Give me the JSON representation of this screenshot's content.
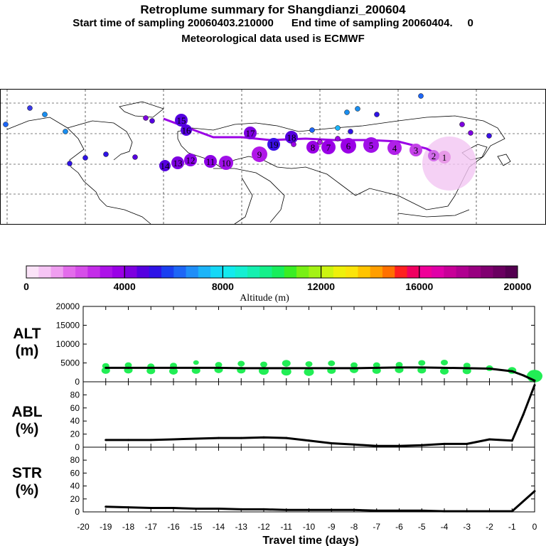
{
  "header": {
    "title": "Retroplume summary for Shangdianzi_200604",
    "sampling_line": "Start time of sampling 20060403.210000      End time of sampling 20060404.     0",
    "met_line": "Meteorological data used is ECMWF"
  },
  "colorbar": {
    "tick_labels": [
      "0",
      "4000",
      "8000",
      "12000",
      "16000",
      "20000"
    ],
    "label": "Altitude (m)",
    "colors": [
      "#fbe3f8",
      "#f6c5f5",
      "#ef9ef0",
      "#e36ceb",
      "#d64ee9",
      "#c42ce8",
      "#ad12e8",
      "#9a00e6",
      "#7d00e0",
      "#5500e0",
      "#2e13e6",
      "#1a3ff0",
      "#1d66f6",
      "#1f8ef8",
      "#1cb4f8",
      "#14d8f6",
      "#12eaee",
      "#14efd2",
      "#14f0b0",
      "#14f08a",
      "#18ee5c",
      "#3aee24",
      "#78f014",
      "#a4f214",
      "#ccf410",
      "#eef00a",
      "#fbe40a",
      "#ffc400",
      "#ff9e00",
      "#ff7000",
      "#ff2020",
      "#f00060",
      "#f00098",
      "#e000a8",
      "#c80098",
      "#b00090",
      "#980080",
      "#800070",
      "#6a0060",
      "#540050"
    ]
  },
  "map": {
    "trajectory_labels": [
      "1",
      "2",
      "3",
      "4",
      "5",
      "6",
      "7",
      "8",
      "9",
      "10",
      "11",
      "12",
      "13",
      "14",
      "15",
      "16",
      "17",
      "18",
      "19"
    ],
    "colors": {
      "track": "#9a00e6",
      "plume_fresh": "#f3c6f3",
      "continent": "#000000"
    }
  },
  "panels": {
    "alt": {
      "label_line1": "ALT",
      "label_line2": "(m)",
      "yticks": [
        "0",
        "5000",
        "10000",
        "15000",
        "20000"
      ]
    },
    "abl": {
      "label_line1": "ABL",
      "label_line2": "(%)",
      "yticks": [
        "0",
        "20",
        "40",
        "60",
        "80"
      ]
    },
    "str": {
      "label_line1": "STR",
      "label_line2": "(%)",
      "yticks": [
        "0",
        "20",
        "40",
        "60",
        "80"
      ]
    },
    "xticks": [
      "-20",
      "-19",
      "-18",
      "-17",
      "-16",
      "-15",
      "-14",
      "-13",
      "-12",
      "-11",
      "-10",
      "-9",
      "-8",
      "-7",
      "-6",
      "-5",
      "-4",
      "-3",
      "-2",
      "-1",
      "0"
    ],
    "xlabel": "Travel time (days)"
  },
  "chart_data": [
    {
      "type": "line",
      "title": "ALT (m)",
      "ylabel": "ALT (m)",
      "xlabel": "Travel time (days)",
      "x": [
        0,
        -0.5,
        -1,
        -2,
        -3,
        -4,
        -5,
        -6,
        -7,
        -8,
        -9,
        -10,
        -11,
        -12,
        -13,
        -14,
        -15,
        -16,
        -17,
        -18,
        -19
      ],
      "values": [
        300,
        1700,
        2800,
        3500,
        3600,
        3700,
        3800,
        3800,
        3700,
        3600,
        3600,
        3600,
        3600,
        3600,
        3600,
        3700,
        3700,
        3700,
        3700,
        3700,
        3700
      ],
      "xlim": [
        -20,
        0
      ],
      "ylim": [
        0,
        20000
      ],
      "scatter_series": {
        "name": "particle altitude clusters",
        "x": [
          -19,
          -19,
          -18,
          -18,
          -17,
          -17,
          -16,
          -16,
          -15,
          -15,
          -14,
          -14,
          -13,
          -13,
          -12,
          -12,
          -11,
          -11,
          -10,
          -10,
          -9,
          -9,
          -8,
          -8,
          -7,
          -7,
          -6,
          -6,
          -5,
          -5,
          -4,
          -4,
          -3,
          -3,
          -2,
          -1,
          0
        ],
        "values": [
          3000,
          4200,
          3100,
          4400,
          2900,
          4100,
          2800,
          4300,
          3000,
          5100,
          3200,
          4500,
          3100,
          4800,
          2900,
          4600,
          2700,
          4900,
          2600,
          4700,
          3000,
          4900,
          3200,
          4400,
          3000,
          4400,
          3200,
          4500,
          3100,
          5000,
          2800,
          5100,
          2900,
          4300,
          3600,
          3000,
          1500
        ],
        "sizes": [
          6,
          5,
          6,
          5,
          6,
          5,
          6,
          5,
          6,
          4,
          6,
          5,
          6,
          5,
          7,
          5,
          7,
          6,
          7,
          5,
          6,
          5,
          6,
          5,
          6,
          5,
          6,
          5,
          6,
          5,
          6,
          5,
          6,
          5,
          5,
          6,
          11
        ]
      }
    },
    {
      "type": "line",
      "title": "ABL (%)",
      "ylabel": "ABL (%)",
      "xlabel": "Travel time (days)",
      "x": [
        0,
        -0.5,
        -1,
        -2,
        -3,
        -4,
        -5,
        -6,
        -7,
        -8,
        -9,
        -10,
        -11,
        -12,
        -13,
        -14,
        -15,
        -16,
        -17,
        -18,
        -19
      ],
      "values": [
        95,
        50,
        10,
        12,
        5,
        5,
        3,
        2,
        2,
        4,
        6,
        10,
        14,
        15,
        14,
        14,
        13,
        12,
        11,
        11,
        11
      ],
      "xlim": [
        -20,
        0
      ],
      "ylim": [
        0,
        100
      ]
    },
    {
      "type": "line",
      "title": "STR (%)",
      "ylabel": "STR (%)",
      "xlabel": "Travel time (days)",
      "x": [
        0,
        -1,
        -2,
        -3,
        -4,
        -5,
        -6,
        -7,
        -8,
        -9,
        -10,
        -11,
        -12,
        -13,
        -14,
        -15,
        -16,
        -17,
        -18,
        -19
      ],
      "values": [
        32,
        1,
        1,
        1,
        1,
        2,
        2,
        2,
        3,
        3,
        3,
        3,
        4,
        4,
        5,
        5,
        6,
        6,
        7,
        8
      ],
      "xlim": [
        -20,
        0
      ],
      "ylim": [
        0,
        100
      ]
    }
  ]
}
